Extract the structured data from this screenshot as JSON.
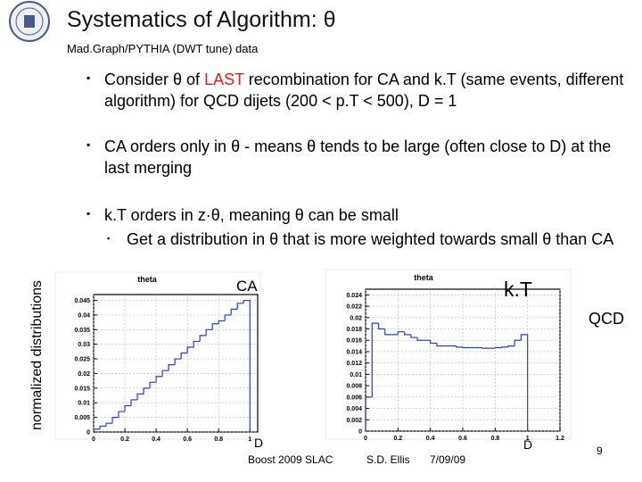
{
  "header": {
    "title": "Systematics of Algorithm: θ",
    "subtitle": "Mad.Graph/PYTHIA (DWT tune) data"
  },
  "bullets": [
    {
      "parts": [
        "Consider θ of ",
        "LAST",
        " recombination for CA and k.T (same events, different algorithm) for QCD dijets (200 < p.T < 500), D = 1"
      ]
    },
    {
      "parts": [
        "CA orders only in θ - means θ tends to be large (often close to D) at the last merging"
      ]
    },
    {
      "parts": [
        "k.T orders in z·θ, meaning θ can be small"
      ]
    }
  ],
  "sub_bullet": "Get a distribution in θ that is more weighted towards small θ than CA",
  "labels": {
    "ca": "CA",
    "kt": "k.T",
    "qcd": "QCD",
    "y_axis": "normalized distributions",
    "d_left": "D",
    "d_right": "D"
  },
  "footer": {
    "event": "Boost 2009 SLAC",
    "author": "S.D. Ellis",
    "date": "7/09/09",
    "page": "9"
  },
  "chart_data": [
    {
      "type": "histogram",
      "title": "theta",
      "color": "#2a3fc0",
      "grid": true,
      "bins": [
        0,
        0.04,
        0.08,
        0.12,
        0.16,
        0.2,
        0.24,
        0.28,
        0.32,
        0.36,
        0.4,
        0.44,
        0.48,
        0.52,
        0.56,
        0.6,
        0.64,
        0.68,
        0.72,
        0.76,
        0.8,
        0.84,
        0.88,
        0.92,
        0.96,
        1
      ],
      "values": [
        0.001,
        0.002,
        0.003,
        0.005,
        0.007,
        0.009,
        0.011,
        0.013,
        0.015,
        0.017,
        0.019,
        0.021,
        0.023,
        0.025,
        0.027,
        0.029,
        0.031,
        0.033,
        0.035,
        0.037,
        0.038,
        0.04,
        0.042,
        0.044,
        0.045
      ],
      "xlim": [
        0,
        1.05
      ],
      "xticks": [
        0,
        0.2,
        0.4,
        0.6,
        0.8,
        1
      ],
      "ylim": [
        0,
        0.047
      ],
      "yticks": [
        0,
        0.005,
        0.01,
        0.015,
        0.02,
        0.025,
        0.03,
        0.035,
        0.04,
        0.045
      ]
    },
    {
      "type": "histogram",
      "title": "theta",
      "color": "#2a3fc0",
      "grid": true,
      "bins": [
        0,
        0.04,
        0.08,
        0.12,
        0.16,
        0.2,
        0.24,
        0.28,
        0.32,
        0.36,
        0.4,
        0.44,
        0.48,
        0.52,
        0.56,
        0.6,
        0.64,
        0.68,
        0.72,
        0.76,
        0.8,
        0.84,
        0.88,
        0.92,
        0.96,
        1
      ],
      "values": [
        0.006,
        0.019,
        0.018,
        0.017,
        0.017,
        0.0175,
        0.017,
        0.0165,
        0.016,
        0.016,
        0.0155,
        0.015,
        0.015,
        0.015,
        0.0148,
        0.0147,
        0.0147,
        0.0147,
        0.0146,
        0.0146,
        0.0147,
        0.0148,
        0.015,
        0.016,
        0.017
      ],
      "xlim": [
        0,
        1.2
      ],
      "xticks": [
        0,
        0.2,
        0.4,
        0.6,
        0.8,
        1,
        1.2
      ],
      "ylim": [
        0,
        0.025
      ],
      "yticks": [
        0,
        0.002,
        0.004,
        0.006,
        0.008,
        0.01,
        0.012,
        0.014,
        0.016,
        0.018,
        0.02,
        0.022,
        0.024
      ]
    }
  ]
}
